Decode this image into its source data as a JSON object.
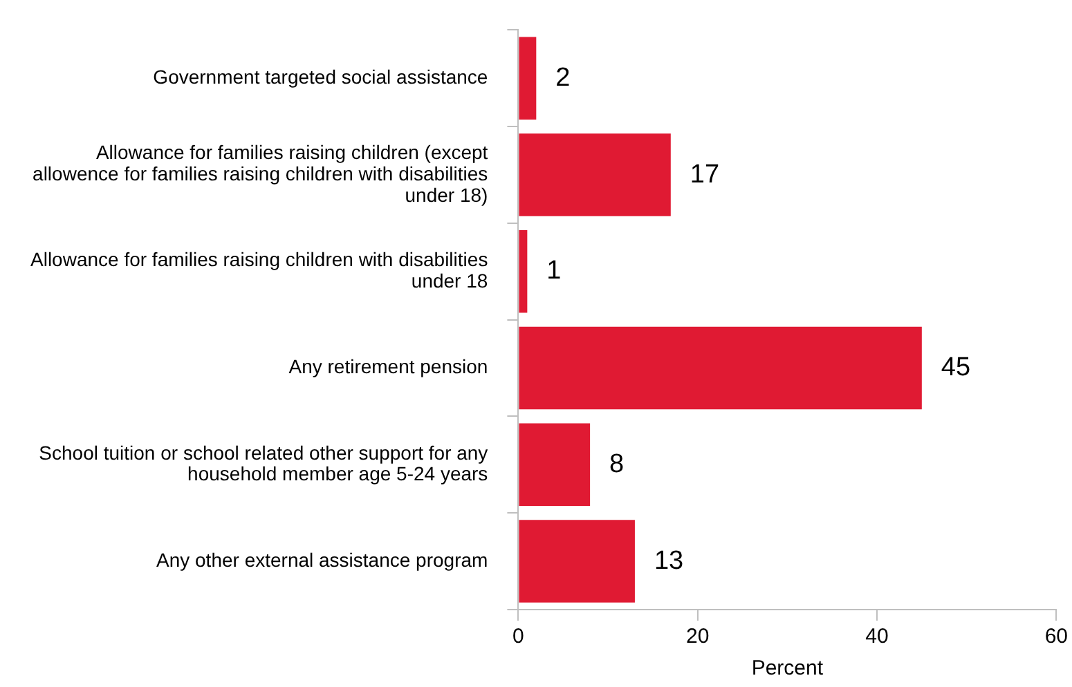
{
  "chart_data": {
    "type": "bar",
    "orientation": "horizontal",
    "xlabel": "Percent",
    "categories": [
      "Government targeted social assistance",
      "Allowance for families raising children (except allowence for families raising children with disabilities under 18)",
      "Allowance for families raising children with disabilities under 18",
      "Any retirement pension",
      "School tuition or school related other support for any household member age 5-24 years",
      "Any other external assistance program"
    ],
    "values": [
      2,
      17,
      1,
      45,
      8,
      13
    ],
    "color": "#e01a33",
    "xlim": [
      0,
      60
    ],
    "xticks": [
      0,
      20,
      40,
      60
    ],
    "grid": false,
    "legend": false,
    "data_labels": true
  }
}
